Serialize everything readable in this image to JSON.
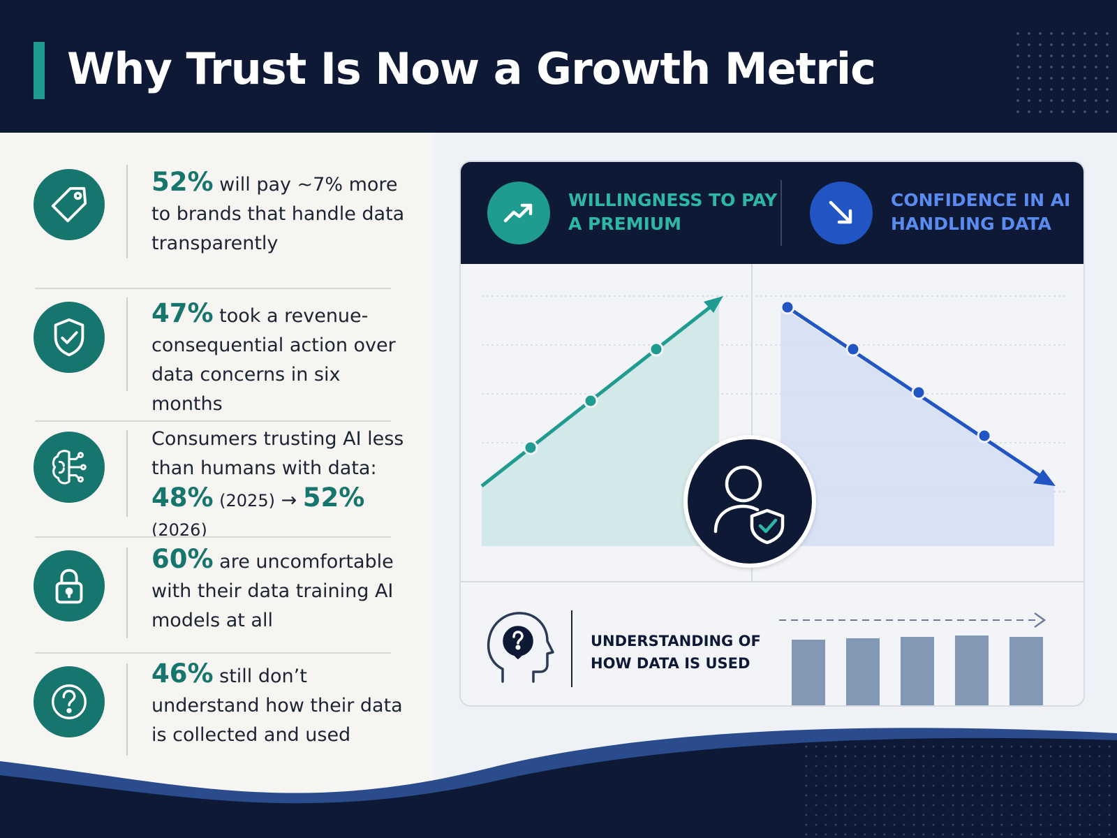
{
  "title": "Why Trust Is Now a Growth Metric",
  "stats": [
    {
      "icon": "price-tag-icon",
      "highlight": "52%",
      "text": " will pay ~7% more to brands that handle data transparently"
    },
    {
      "icon": "shield-check-icon",
      "highlight": "47%",
      "text": " took a revenue-consequential action over data concerns in six months"
    },
    {
      "icon": "brain-circuit-icon",
      "prefix": "Consumers trusting AI less than humans with data:",
      "value_a": "48%",
      "year_a": "(2025)",
      "arrow": "→",
      "value_b": "52%",
      "year_b": "(2026)"
    },
    {
      "icon": "padlock-icon",
      "highlight": "60%",
      "text": " are uncomfortable with their data training AI models at all"
    },
    {
      "icon": "question-circle-icon",
      "highlight": "46%",
      "text": " still don’t understand how their data is collected and used"
    }
  ],
  "panels": {
    "left_label": "WILLINGNESS TO PAY\nA PREMIUM",
    "right_label": "CONFIDENCE IN AI\nHANDLING DATA",
    "bottom_label": "UNDERSTANDING OF\nHOW DATA IS USED"
  },
  "colors": {
    "navy": "#0e1a35",
    "teal": "#16756c",
    "teal_bright": "#1f9b8f",
    "blue": "#2155c4",
    "bar_gray": "#8298b4"
  },
  "chart_data": [
    {
      "type": "area",
      "name_label": "WILLINGNESS TO PAY A PREMIUM",
      "trend": "increasing",
      "points": 4
    },
    {
      "type": "area",
      "name_label": "CONFIDENCE IN AI HANDLING DATA",
      "trend": "decreasing",
      "points": 4
    },
    {
      "type": "bar",
      "name_label": "UNDERSTANDING OF HOW DATA IS USED",
      "bars": 5,
      "trend": "flat"
    }
  ]
}
